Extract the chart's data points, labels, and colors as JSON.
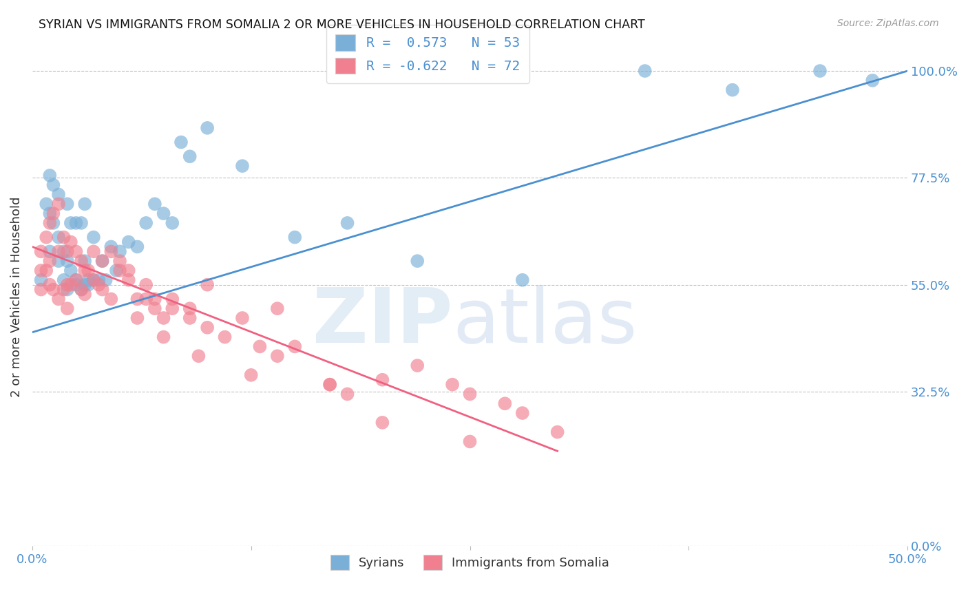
{
  "title": "SYRIAN VS IMMIGRANTS FROM SOMALIA 2 OR MORE VEHICLES IN HOUSEHOLD CORRELATION CHART",
  "source": "Source: ZipAtlas.com",
  "ylabel": "2 or more Vehicles in Household",
  "syrians_color": "#7ab0d8",
  "somalia_color": "#f08090",
  "syrians_line_color": "#4a90d0",
  "somalia_line_color": "#f06080",
  "syrians_scatter_x": [
    0.5,
    0.8,
    1.0,
    1.0,
    1.2,
    1.5,
    1.5,
    1.8,
    2.0,
    2.0,
    2.2,
    2.5,
    2.5,
    2.8,
    3.0,
    3.0,
    3.2,
    3.5,
    3.8,
    4.0,
    4.2,
    4.5,
    4.8,
    5.0,
    5.5,
    6.0,
    6.5,
    7.0,
    7.5,
    8.0,
    8.5,
    9.0,
    10.0,
    12.0,
    15.0,
    18.0,
    22.0,
    28.0,
    35.0,
    40.0,
    45.0,
    48.0,
    1.0,
    1.2,
    1.5,
    1.8,
    2.0,
    2.2,
    2.5,
    2.8,
    3.0,
    3.2,
    3.5
  ],
  "syrians_scatter_y": [
    56,
    72,
    62,
    78,
    76,
    74,
    60,
    56,
    72,
    54,
    68,
    68,
    55,
    68,
    72,
    60,
    56,
    65,
    56,
    60,
    56,
    63,
    58,
    62,
    64,
    63,
    68,
    72,
    70,
    68,
    85,
    82,
    88,
    80,
    65,
    68,
    60,
    56,
    100,
    96,
    100,
    98,
    70,
    68,
    65,
    62,
    60,
    58,
    56,
    54,
    55,
    55,
    56
  ],
  "somalia_scatter_x": [
    0.5,
    0.5,
    0.5,
    0.8,
    0.8,
    1.0,
    1.0,
    1.0,
    1.2,
    1.2,
    1.5,
    1.5,
    1.5,
    1.8,
    1.8,
    2.0,
    2.0,
    2.0,
    2.2,
    2.2,
    2.5,
    2.5,
    2.8,
    2.8,
    3.0,
    3.0,
    3.2,
    3.5,
    3.5,
    3.8,
    4.0,
    4.0,
    4.5,
    5.0,
    5.5,
    6.0,
    6.5,
    7.0,
    7.5,
    8.0,
    9.0,
    10.0,
    12.0,
    14.0,
    20.0,
    25.0,
    5.0,
    6.5,
    7.0,
    8.0,
    9.0,
    10.0,
    11.0,
    13.0,
    14.0,
    15.0,
    17.0,
    18.0,
    20.0,
    22.0,
    24.0,
    25.0,
    27.0,
    28.0,
    30.0,
    4.5,
    5.5,
    6.0,
    7.5,
    9.5,
    12.5,
    17.0
  ],
  "somalia_scatter_y": [
    62,
    58,
    54,
    65,
    58,
    68,
    60,
    55,
    70,
    54,
    72,
    62,
    52,
    65,
    54,
    62,
    55,
    50,
    64,
    55,
    62,
    56,
    60,
    54,
    58,
    53,
    58,
    62,
    56,
    55,
    60,
    54,
    52,
    58,
    56,
    48,
    52,
    50,
    48,
    52,
    50,
    55,
    48,
    50,
    26,
    22,
    60,
    55,
    52,
    50,
    48,
    46,
    44,
    42,
    40,
    42,
    34,
    32,
    35,
    38,
    34,
    32,
    30,
    28,
    24,
    62,
    58,
    52,
    44,
    40,
    36,
    34
  ],
  "xlim": [
    0,
    50
  ],
  "ylim": [
    0,
    105
  ],
  "y_ticks": [
    0,
    32.5,
    55.0,
    77.5,
    100.0
  ],
  "blue_line_x": [
    0,
    50
  ],
  "blue_line_y": [
    45,
    100
  ],
  "pink_line_x": [
    0,
    30
  ],
  "pink_line_y": [
    63,
    20
  ],
  "legend_label_1": "R =  0.573   N = 53",
  "legend_label_2": "R = -0.622   N = 72",
  "bottom_legend_1": "Syrians",
  "bottom_legend_2": "Immigrants from Somalia"
}
